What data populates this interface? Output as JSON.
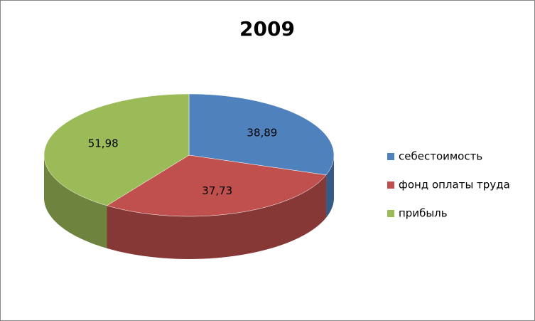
{
  "chart_data": {
    "type": "pie",
    "title": "2009",
    "categories": [
      "себестоимость",
      "фонд оплаты труда",
      "прибыль"
    ],
    "values": [
      38.89,
      37.73,
      51.98
    ],
    "value_labels": [
      "38,89",
      "37,73",
      "51,98"
    ],
    "colors": [
      "#4f81bd",
      "#c0504d",
      "#9bbb59"
    ],
    "legend": "right"
  }
}
